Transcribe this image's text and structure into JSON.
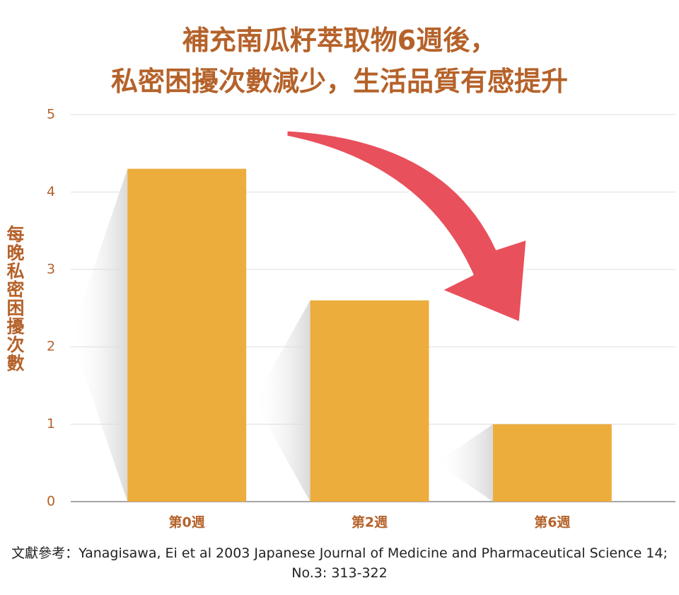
{
  "chart_data": {
    "type": "bar",
    "title": "補充南瓜籽萃取物6週後，\n私密困擾次數減少，生活品質有感提升",
    "y_label": "每晚私密困擾次數",
    "source": "文獻參考：Yanagisawa, Ei et al 2003 Japanese Journal of Medicine and Pharmaceutical Science 14; No.3: 313-322",
    "categories": [
      "第0週",
      "第2週",
      "第6週"
    ],
    "values": [
      4.3,
      2.6,
      1.0
    ],
    "color": "#ecad3d",
    "ylim": [
      0,
      5
    ],
    "yticks": [
      0,
      1,
      2,
      3,
      4,
      5
    ],
    "grid": true
  }
}
